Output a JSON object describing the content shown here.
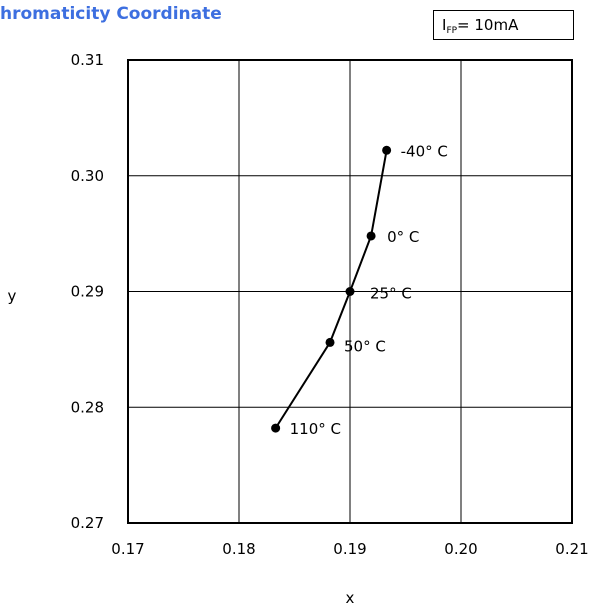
{
  "chart_data": {
    "type": "line",
    "title": "hromaticity Coordinate",
    "condition": {
      "prefix": "I",
      "subscript": "FP",
      "suffix": "= 10mA"
    },
    "xlabel": "x",
    "ylabel": "y",
    "xlim": [
      0.17,
      0.21
    ],
    "ylim": [
      0.27,
      0.31
    ],
    "xticks": [
      "0.17",
      "0.18",
      "0.19",
      "0.20",
      "0.21"
    ],
    "yticks": [
      "0.27",
      "0.28",
      "0.29",
      "0.30",
      "0.31"
    ],
    "grid": true,
    "series": [
      {
        "points": [
          {
            "x": 0.1833,
            "y": 0.2782,
            "label": "110° C"
          },
          {
            "x": 0.1882,
            "y": 0.2856,
            "label": "50° C"
          },
          {
            "x": 0.19,
            "y": 0.29,
            "label": "25° C"
          },
          {
            "x": 0.1919,
            "y": 0.2948,
            "label": "0° C"
          },
          {
            "x": 0.1933,
            "y": 0.3022,
            "label": "-40° C"
          }
        ]
      }
    ],
    "colors": {
      "line": "#000000",
      "title": "#3d6fe0"
    }
  }
}
